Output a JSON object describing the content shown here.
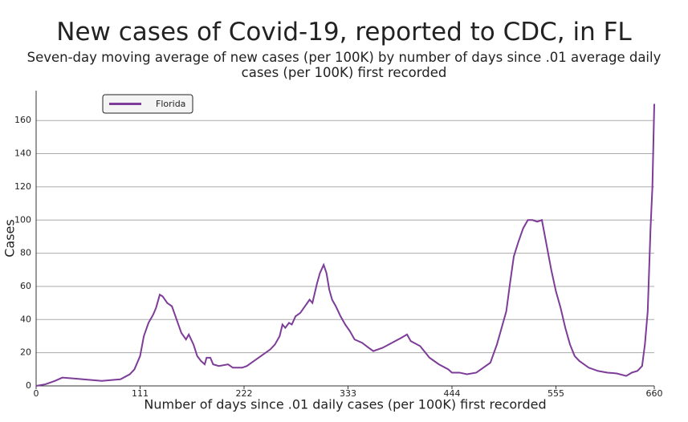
{
  "chart_data": {
    "type": "line",
    "title": "New cases of Covid-19, reported to CDC, in FL",
    "subtitle": "Seven-day moving average of new cases (per 100K) by number of days since .01 average daily cases (per 100K) first recorded",
    "x_label": "Number of days since .01 daily cases (per 100K) first recorded",
    "y_label": "Cases",
    "x": [
      0,
      10,
      20,
      28,
      40,
      50,
      60,
      70,
      80,
      90,
      100,
      105,
      111,
      115,
      120,
      125,
      128,
      132,
      135,
      140,
      145,
      150,
      155,
      160,
      163,
      168,
      172,
      176,
      180,
      182,
      186,
      189,
      195,
      205,
      210,
      220,
      225,
      230,
      240,
      250,
      255,
      260,
      263,
      266,
      270,
      273,
      277,
      282,
      287,
      292,
      295,
      300,
      303,
      307,
      310,
      313,
      316,
      320,
      325,
      330,
      335,
      340,
      348,
      355,
      360,
      370,
      380,
      390,
      396,
      400,
      410,
      420,
      430,
      440,
      444,
      452,
      460,
      470,
      480,
      485,
      492,
      498,
      502,
      506,
      510,
      515,
      520,
      525,
      530,
      535,
      540,
      545,
      550,
      555,
      560,
      565,
      570,
      575,
      580,
      590,
      600,
      610,
      620,
      630,
      636,
      642,
      647,
      650,
      653,
      656,
      658,
      660
    ],
    "series": [
      {
        "name": "Florida",
        "color": "#7d3c98",
        "values": [
          0,
          1,
          3,
          5,
          4.5,
          4,
          3.5,
          3,
          3.5,
          4,
          7,
          10,
          18,
          30,
          38,
          43,
          47,
          55,
          54,
          50,
          48,
          40,
          32,
          28,
          31,
          25,
          18,
          15,
          13,
          17,
          17,
          13,
          12,
          13,
          11,
          11,
          12,
          14,
          18,
          22,
          25,
          30,
          37,
          35,
          38,
          37,
          42,
          44,
          48,
          52,
          50,
          62,
          68,
          73,
          68,
          58,
          52,
          48,
          42,
          37,
          33,
          28,
          26,
          23,
          21,
          23,
          26,
          29,
          31,
          27,
          24,
          17,
          13,
          10,
          8,
          8,
          7,
          8,
          12,
          14,
          25,
          37,
          45,
          62,
          78,
          87,
          95,
          100,
          100,
          99,
          100,
          85,
          70,
          57,
          47,
          35,
          25,
          18,
          15,
          11,
          9,
          8,
          7.5,
          6,
          8,
          9,
          12,
          25,
          45,
          95,
          120,
          170
        ]
      }
    ],
    "xlim": [
      0,
      660
    ],
    "xticks": [
      0,
      111,
      222,
      333,
      444,
      555,
      660
    ],
    "ylim": [
      0,
      178
    ],
    "yticks": [
      0,
      20,
      40,
      60,
      80,
      100,
      120,
      140,
      160
    ],
    "grid": true,
    "legend": "top-left"
  }
}
